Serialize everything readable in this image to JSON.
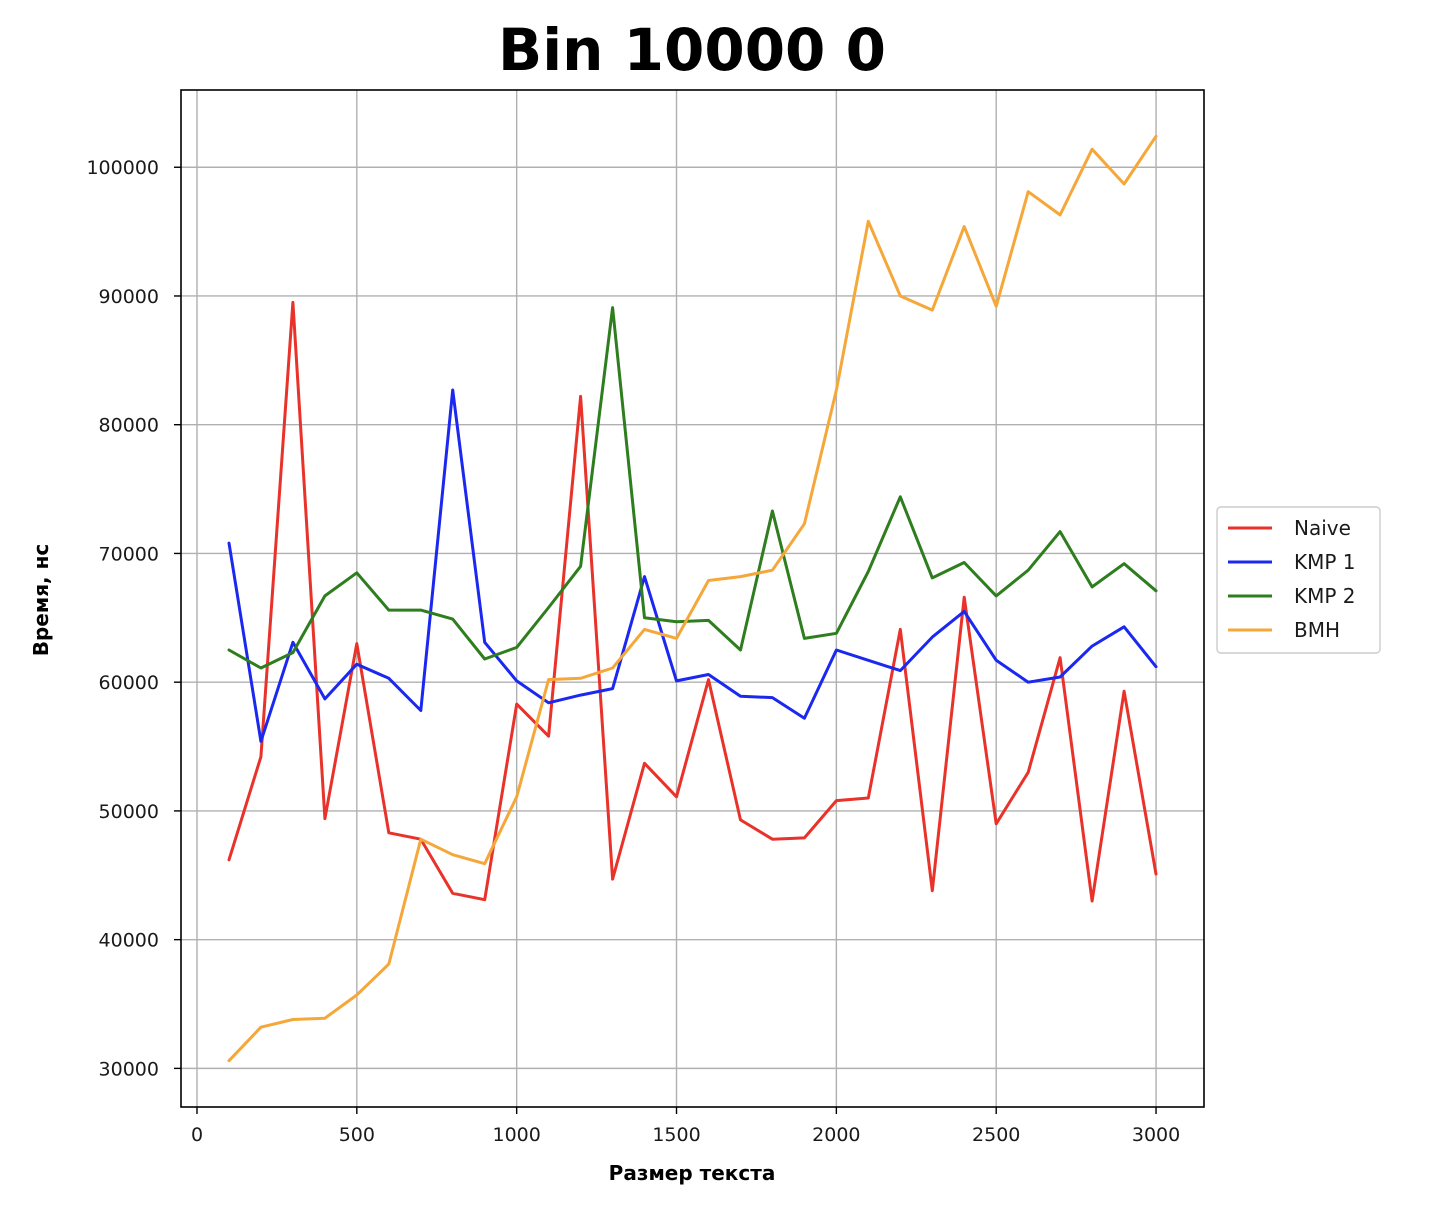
{
  "chart_data": {
    "type": "line",
    "title": "Bin 10000 0",
    "xlabel": "Размер текста",
    "ylabel": "Время, нс",
    "xlim": [
      -50,
      3150
    ],
    "ylim": [
      27000,
      106000
    ],
    "xticks": [
      0,
      500,
      1000,
      1500,
      2000,
      2500,
      3000
    ],
    "yticks": [
      30000,
      40000,
      50000,
      60000,
      70000,
      80000,
      90000,
      100000
    ],
    "grid": true,
    "legend_position": "outside-right",
    "x": [
      100,
      200,
      300,
      400,
      500,
      600,
      700,
      800,
      900,
      1000,
      1100,
      1200,
      1300,
      1400,
      1500,
      1600,
      1700,
      1800,
      1900,
      2000,
      2100,
      2200,
      2300,
      2400,
      2500,
      2600,
      2700,
      2800,
      2900,
      3000
    ],
    "series": [
      {
        "name": "Naive",
        "color": "#e8322a",
        "values": [
          46200,
          54200,
          89500,
          49400,
          63000,
          48300,
          47800,
          43600,
          43100,
          58300,
          55800,
          82200,
          44700,
          53700,
          51100,
          60200,
          49300,
          47800,
          47900,
          50800,
          51000,
          64100,
          43800,
          66600,
          49000,
          53000,
          61900,
          43000,
          59300,
          45100
        ]
      },
      {
        "name": "KMP 1",
        "color": "#1a28f0",
        "values": [
          70800,
          55400,
          63100,
          58700,
          61400,
          60300,
          57800,
          82700,
          63100,
          60100,
          58400,
          59000,
          59500,
          68200,
          60100,
          60600,
          58900,
          58800,
          57200,
          62500,
          61700,
          60900,
          63500,
          65500,
          61700,
          60000,
          60400,
          62800,
          64300,
          61200
        ]
      },
      {
        "name": "KMP 2",
        "color": "#2e7d1e",
        "values": [
          62500,
          61100,
          62300,
          66700,
          68500,
          65600,
          65600,
          64900,
          61800,
          62700,
          65800,
          69000,
          89100,
          65000,
          64700,
          64800,
          62500,
          73300,
          63400,
          63800,
          68600,
          74400,
          68100,
          69300,
          66700,
          68700,
          71700,
          67400,
          69200,
          67100
        ]
      },
      {
        "name": "BMH",
        "color": "#f5a73a",
        "values": [
          30600,
          33200,
          33800,
          33900,
          35700,
          38100,
          47800,
          46600,
          45900,
          51100,
          60200,
          60300,
          61100,
          64100,
          63400,
          67900,
          68200,
          68700,
          72300,
          82700,
          95800,
          90000,
          88900,
          95400,
          89200,
          98100,
          96300,
          101400,
          98700,
          102400
        ]
      }
    ]
  }
}
